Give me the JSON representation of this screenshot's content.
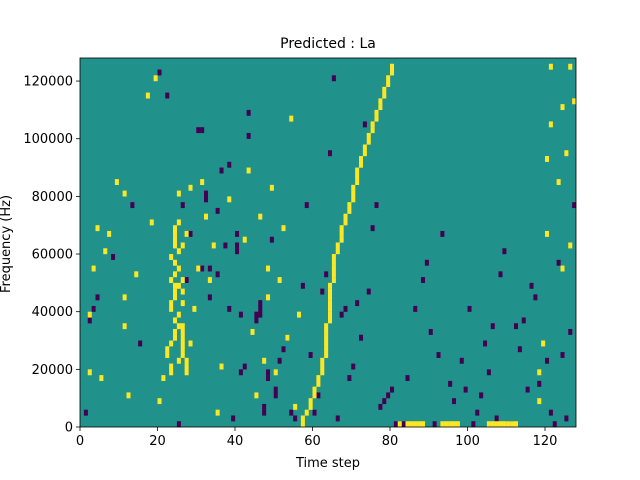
{
  "chart_data": {
    "type": "heatmap",
    "title": "Predicted : La",
    "xlabel": "Time step",
    "ylabel": "Frequency (Hz)",
    "xlim": [
      0,
      128
    ],
    "ylim": [
      0,
      128000
    ],
    "xticks": [
      0,
      20,
      40,
      60,
      80,
      100,
      120
    ],
    "xtick_labels": [
      "0",
      "20",
      "40",
      "60",
      "80",
      "100",
      "120"
    ],
    "yticks": [
      0,
      20000,
      40000,
      60000,
      80000,
      100000,
      120000
    ],
    "ytick_labels": [
      "0",
      "20000",
      "40000",
      "60000",
      "80000",
      "100000",
      "120000"
    ],
    "colormap": "viridis",
    "levels": {
      "low": "#440154",
      "mid": "#21918c",
      "high": "#fde725"
    },
    "background_level": "mid",
    "n_time_steps": 128,
    "n_freq_bins": 64,
    "bin_width_hz": 2000,
    "cells_low": [
      [
        1,
        2
      ],
      [
        2,
        18
      ],
      [
        3,
        20
      ],
      [
        4,
        22
      ],
      [
        8,
        29
      ],
      [
        13,
        38
      ],
      [
        15,
        14
      ],
      [
        20,
        61
      ],
      [
        22,
        57
      ],
      [
        25,
        0
      ],
      [
        26,
        38
      ],
      [
        27,
        25
      ],
      [
        28,
        33
      ],
      [
        30,
        51
      ],
      [
        31,
        27
      ],
      [
        31,
        51
      ],
      [
        32,
        39
      ],
      [
        32,
        40
      ],
      [
        33,
        22
      ],
      [
        33,
        27
      ],
      [
        35,
        26
      ],
      [
        35,
        37
      ],
      [
        36,
        44
      ],
      [
        37,
        31
      ],
      [
        38,
        20
      ],
      [
        38,
        45
      ],
      [
        39,
        1
      ],
      [
        40,
        30
      ],
      [
        40,
        31
      ],
      [
        40,
        33
      ],
      [
        41,
        9
      ],
      [
        41,
        19
      ],
      [
        42,
        10
      ],
      [
        43,
        50
      ],
      [
        43,
        54
      ],
      [
        45,
        18
      ],
      [
        45,
        19
      ],
      [
        46,
        19
      ],
      [
        46,
        20
      ],
      [
        46,
        21
      ],
      [
        47,
        2
      ],
      [
        47,
        3
      ],
      [
        48,
        8
      ],
      [
        48,
        9
      ],
      [
        49,
        32
      ],
      [
        50,
        5
      ],
      [
        50,
        6
      ],
      [
        51,
        11
      ],
      [
        52,
        13
      ],
      [
        53,
        15
      ],
      [
        54,
        2
      ],
      [
        55,
        1
      ],
      [
        57,
        24
      ],
      [
        58,
        38
      ],
      [
        59,
        12
      ],
      [
        60,
        2
      ],
      [
        61,
        5
      ],
      [
        62,
        23
      ],
      [
        63,
        26
      ],
      [
        64,
        47
      ],
      [
        65,
        60
      ],
      [
        66,
        1
      ],
      [
        67,
        19
      ],
      [
        68,
        20
      ],
      [
        69,
        8
      ],
      [
        70,
        10
      ],
      [
        71,
        21
      ],
      [
        72,
        15
      ],
      [
        73,
        52
      ],
      [
        74,
        23
      ],
      [
        75,
        34
      ],
      [
        76,
        38
      ],
      [
        77,
        3
      ],
      [
        78,
        4
      ],
      [
        79,
        5
      ],
      [
        80,
        6
      ],
      [
        81,
        0
      ],
      [
        82,
        0
      ],
      [
        83,
        0
      ],
      [
        84,
        8
      ],
      [
        86,
        20
      ],
      [
        88,
        25
      ],
      [
        89,
        28
      ],
      [
        90,
        16
      ],
      [
        91,
        0
      ],
      [
        92,
        12
      ],
      [
        93,
        33
      ],
      [
        95,
        7
      ],
      [
        96,
        4
      ],
      [
        98,
        11
      ],
      [
        99,
        6
      ],
      [
        100,
        20
      ],
      [
        101,
        0
      ],
      [
        102,
        2
      ],
      [
        103,
        5
      ],
      [
        104,
        14
      ],
      [
        105,
        9
      ],
      [
        106,
        17
      ],
      [
        107,
        1
      ],
      [
        108,
        26
      ],
      [
        109,
        30
      ],
      [
        110,
        0
      ],
      [
        111,
        0
      ],
      [
        112,
        17
      ],
      [
        113,
        13
      ],
      [
        114,
        18
      ],
      [
        115,
        6
      ],
      [
        116,
        24
      ],
      [
        117,
        22
      ],
      [
        118,
        7
      ],
      [
        120,
        11
      ],
      [
        121,
        2
      ],
      [
        122,
        0
      ],
      [
        123,
        28
      ],
      [
        124,
        12
      ],
      [
        125,
        1
      ],
      [
        126,
        16
      ],
      [
        127,
        38
      ]
    ],
    "cells_high": [
      [
        2,
        9
      ],
      [
        2,
        19
      ],
      [
        3,
        27
      ],
      [
        4,
        34
      ],
      [
        5,
        8
      ],
      [
        6,
        30
      ],
      [
        7,
        33
      ],
      [
        9,
        42
      ],
      [
        11,
        17
      ],
      [
        11,
        22
      ],
      [
        11,
        40
      ],
      [
        12,
        5
      ],
      [
        14,
        26
      ],
      [
        17,
        57
      ],
      [
        18,
        35
      ],
      [
        19,
        60
      ],
      [
        20,
        4
      ],
      [
        21,
        8
      ],
      [
        22,
        12
      ],
      [
        22,
        13
      ],
      [
        23,
        9
      ],
      [
        23,
        10
      ],
      [
        23,
        14
      ],
      [
        23,
        20
      ],
      [
        23,
        21
      ],
      [
        23,
        25
      ],
      [
        23,
        29
      ],
      [
        24,
        15
      ],
      [
        24,
        16
      ],
      [
        24,
        18
      ],
      [
        24,
        22
      ],
      [
        24,
        23
      ],
      [
        24,
        24
      ],
      [
        24,
        26
      ],
      [
        24,
        28
      ],
      [
        24,
        31
      ],
      [
        24,
        32
      ],
      [
        24,
        33
      ],
      [
        24,
        34
      ],
      [
        25,
        11
      ],
      [
        25,
        17
      ],
      [
        25,
        19
      ],
      [
        25,
        24
      ],
      [
        25,
        27
      ],
      [
        25,
        30
      ],
      [
        25,
        35
      ],
      [
        25,
        40
      ],
      [
        26,
        12
      ],
      [
        26,
        13
      ],
      [
        26,
        14
      ],
      [
        26,
        15
      ],
      [
        26,
        16
      ],
      [
        26,
        17
      ],
      [
        26,
        21
      ],
      [
        26,
        23
      ],
      [
        26,
        25
      ],
      [
        26,
        31
      ],
      [
        27,
        9
      ],
      [
        27,
        10
      ],
      [
        27,
        11
      ],
      [
        27,
        33
      ],
      [
        28,
        14
      ],
      [
        28,
        41
      ],
      [
        29,
        20
      ],
      [
        30,
        27
      ],
      [
        31,
        42
      ],
      [
        32,
        36
      ],
      [
        33,
        25
      ],
      [
        34,
        31
      ],
      [
        35,
        2
      ],
      [
        36,
        10
      ],
      [
        38,
        39
      ],
      [
        42,
        32
      ],
      [
        43,
        44
      ],
      [
        44,
        16
      ],
      [
        45,
        5
      ],
      [
        46,
        36
      ],
      [
        47,
        11
      ],
      [
        48,
        22
      ],
      [
        48,
        27
      ],
      [
        49,
        41
      ],
      [
        50,
        9
      ],
      [
        51,
        25
      ],
      [
        52,
        34
      ],
      [
        53,
        15
      ],
      [
        54,
        53
      ],
      [
        55,
        3
      ],
      [
        56,
        19
      ],
      [
        57,
        0
      ],
      [
        57,
        1
      ],
      [
        58,
        2
      ],
      [
        59,
        3
      ],
      [
        59,
        4
      ],
      [
        60,
        5
      ],
      [
        60,
        6
      ],
      [
        61,
        7
      ],
      [
        61,
        8
      ],
      [
        62,
        9
      ],
      [
        62,
        10
      ],
      [
        62,
        11
      ],
      [
        63,
        12
      ],
      [
        63,
        13
      ],
      [
        63,
        14
      ],
      [
        63,
        15
      ],
      [
        63,
        16
      ],
      [
        63,
        17
      ],
      [
        64,
        18
      ],
      [
        64,
        19
      ],
      [
        64,
        20
      ],
      [
        64,
        21
      ],
      [
        64,
        22
      ],
      [
        64,
        23
      ],
      [
        64,
        24
      ],
      [
        65,
        25
      ],
      [
        65,
        26
      ],
      [
        65,
        27
      ],
      [
        65,
        28
      ],
      [
        65,
        29
      ],
      [
        66,
        30
      ],
      [
        66,
        31
      ],
      [
        67,
        32
      ],
      [
        67,
        33
      ],
      [
        67,
        34
      ],
      [
        68,
        35
      ],
      [
        68,
        36
      ],
      [
        69,
        37
      ],
      [
        69,
        38
      ],
      [
        70,
        39
      ],
      [
        70,
        40
      ],
      [
        70,
        41
      ],
      [
        71,
        42
      ],
      [
        71,
        43
      ],
      [
        71,
        44
      ],
      [
        72,
        45
      ],
      [
        72,
        46
      ],
      [
        73,
        47
      ],
      [
        73,
        48
      ],
      [
        74,
        49
      ],
      [
        74,
        50
      ],
      [
        75,
        51
      ],
      [
        75,
        52
      ],
      [
        76,
        53
      ],
      [
        76,
        54
      ],
      [
        77,
        55
      ],
      [
        77,
        56
      ],
      [
        78,
        57
      ],
      [
        78,
        58
      ],
      [
        79,
        59
      ],
      [
        79,
        60
      ],
      [
        80,
        61
      ],
      [
        80,
        62
      ],
      [
        82,
        0
      ],
      [
        84,
        0
      ],
      [
        85,
        0
      ],
      [
        86,
        0
      ],
      [
        87,
        0
      ],
      [
        88,
        0
      ],
      [
        93,
        0
      ],
      [
        94,
        0
      ],
      [
        95,
        0
      ],
      [
        96,
        0
      ],
      [
        97,
        0
      ],
      [
        105,
        0
      ],
      [
        106,
        0
      ],
      [
        107,
        0
      ],
      [
        108,
        0
      ],
      [
        109,
        0
      ],
      [
        110,
        0
      ],
      [
        111,
        0
      ],
      [
        112,
        0
      ],
      [
        118,
        4
      ],
      [
        118,
        9
      ],
      [
        119,
        14
      ],
      [
        120,
        33
      ],
      [
        120,
        46
      ],
      [
        121,
        52
      ],
      [
        121,
        62
      ],
      [
        123,
        42
      ],
      [
        124,
        27
      ],
      [
        124,
        55
      ],
      [
        125,
        47
      ],
      [
        126,
        31
      ],
      [
        126,
        62
      ],
      [
        127,
        56
      ]
    ]
  }
}
